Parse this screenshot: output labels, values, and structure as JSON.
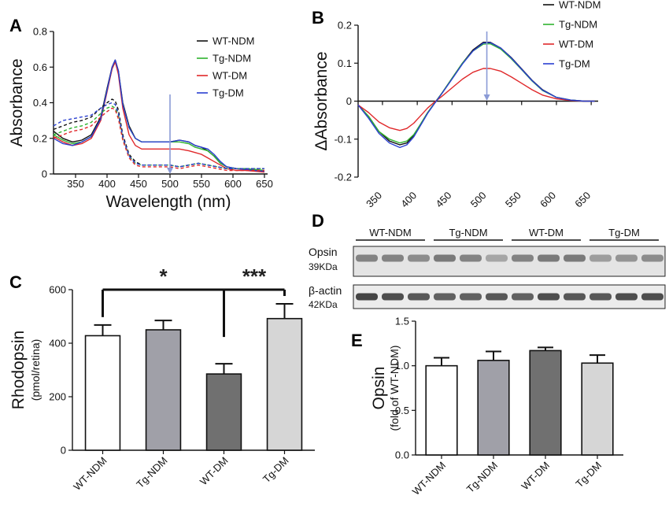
{
  "panels": {
    "A": "A",
    "B": "B",
    "C": "C",
    "D": "D",
    "E": "E"
  },
  "legend_names": [
    "WT-NDM",
    "Tg-NDM",
    "WT-DM",
    "Tg-DM"
  ],
  "colors": {
    "WT-NDM": "#111111",
    "Tg-NDM": "#2fb32f",
    "WT-DM": "#e0282a",
    "Tg-DM": "#2a3fd0",
    "arrow": "#8b9bd6"
  },
  "blot": {
    "groups": [
      "WT-NDM",
      "Tg-NDM",
      "WT-DM",
      "Tg-DM"
    ],
    "rows": [
      {
        "label": "Opsin",
        "kda": "39KDa"
      },
      {
        "label": "β-actin",
        "kda": "42KDa"
      }
    ]
  },
  "chart_data": [
    {
      "panel": "A",
      "type": "line",
      "xlabel": "Wavelength (nm)",
      "ylabel": "Absorbance",
      "xlim": [
        315,
        655
      ],
      "ylim": [
        0,
        0.8
      ],
      "xticks": [
        350,
        400,
        450,
        500,
        550,
        600,
        650
      ],
      "yticks": [
        0.0,
        0.2,
        0.4,
        0.6,
        0.8
      ],
      "arrow_at": 500,
      "series": [
        {
          "name": "WT-NDM",
          "dash": false,
          "x": [
            315,
            330,
            345,
            360,
            375,
            390,
            400,
            408,
            413,
            418,
            425,
            435,
            445,
            455,
            470,
            485,
            500,
            515,
            530,
            540,
            550,
            560,
            570,
            580,
            590,
            605,
            620,
            635,
            650
          ],
          "y": [
            0.24,
            0.2,
            0.18,
            0.19,
            0.22,
            0.32,
            0.48,
            0.6,
            0.64,
            0.58,
            0.4,
            0.27,
            0.2,
            0.18,
            0.18,
            0.18,
            0.18,
            0.19,
            0.18,
            0.16,
            0.15,
            0.13,
            0.1,
            0.06,
            0.04,
            0.03,
            0.025,
            0.02,
            0.015
          ]
        },
        {
          "name": "Tg-NDM",
          "dash": false,
          "x": [
            315,
            330,
            345,
            360,
            375,
            390,
            400,
            408,
            413,
            418,
            425,
            435,
            445,
            455,
            470,
            485,
            500,
            515,
            530,
            540,
            550,
            560,
            570,
            580,
            590,
            605,
            620,
            635,
            650
          ],
          "y": [
            0.22,
            0.19,
            0.17,
            0.18,
            0.21,
            0.31,
            0.47,
            0.59,
            0.63,
            0.57,
            0.39,
            0.26,
            0.2,
            0.18,
            0.18,
            0.18,
            0.18,
            0.18,
            0.17,
            0.15,
            0.14,
            0.13,
            0.1,
            0.06,
            0.04,
            0.03,
            0.03,
            0.025,
            0.02
          ]
        },
        {
          "name": "WT-DM",
          "dash": false,
          "x": [
            315,
            330,
            345,
            360,
            375,
            390,
            400,
            408,
            413,
            418,
            425,
            435,
            445,
            455,
            470,
            485,
            500,
            515,
            530,
            540,
            550,
            560,
            570,
            580,
            590,
            605,
            620,
            635,
            650
          ],
          "y": [
            0.21,
            0.18,
            0.16,
            0.17,
            0.2,
            0.3,
            0.46,
            0.59,
            0.63,
            0.56,
            0.37,
            0.22,
            0.16,
            0.14,
            0.14,
            0.14,
            0.14,
            0.14,
            0.13,
            0.12,
            0.11,
            0.09,
            0.07,
            0.05,
            0.03,
            0.02,
            0.02,
            0.015,
            0.01
          ]
        },
        {
          "name": "Tg-DM",
          "dash": false,
          "x": [
            315,
            330,
            345,
            360,
            375,
            390,
            400,
            408,
            413,
            418,
            425,
            435,
            445,
            455,
            470,
            485,
            500,
            515,
            530,
            540,
            550,
            560,
            570,
            580,
            590,
            605,
            620,
            635,
            650
          ],
          "y": [
            0.2,
            0.17,
            0.16,
            0.18,
            0.21,
            0.31,
            0.47,
            0.6,
            0.64,
            0.58,
            0.39,
            0.26,
            0.2,
            0.18,
            0.18,
            0.18,
            0.18,
            0.19,
            0.18,
            0.16,
            0.15,
            0.14,
            0.11,
            0.07,
            0.04,
            0.03,
            0.025,
            0.02,
            0.015
          ]
        },
        {
          "name": "WT-NDM",
          "dash": true,
          "x": [
            315,
            330,
            345,
            360,
            375,
            390,
            400,
            408,
            413,
            418,
            425,
            435,
            445,
            455,
            470,
            485,
            500,
            515,
            530,
            545,
            560,
            575,
            590,
            605,
            620,
            635,
            650
          ],
          "y": [
            0.25,
            0.27,
            0.29,
            0.3,
            0.32,
            0.37,
            0.4,
            0.42,
            0.41,
            0.36,
            0.22,
            0.11,
            0.07,
            0.05,
            0.05,
            0.05,
            0.05,
            0.04,
            0.05,
            0.06,
            0.05,
            0.04,
            0.03,
            0.03,
            0.03,
            0.03,
            0.03
          ]
        },
        {
          "name": "Tg-NDM",
          "dash": true,
          "x": [
            315,
            330,
            345,
            360,
            375,
            390,
            400,
            408,
            413,
            418,
            425,
            435,
            445,
            455,
            470,
            485,
            500,
            515,
            530,
            545,
            560,
            575,
            590,
            605,
            620,
            635,
            650
          ],
          "y": [
            0.22,
            0.24,
            0.26,
            0.27,
            0.29,
            0.34,
            0.37,
            0.38,
            0.37,
            0.33,
            0.2,
            0.1,
            0.06,
            0.05,
            0.05,
            0.05,
            0.05,
            0.04,
            0.05,
            0.06,
            0.05,
            0.04,
            0.03,
            0.03,
            0.03,
            0.03,
            0.03
          ]
        },
        {
          "name": "WT-DM",
          "dash": true,
          "x": [
            315,
            330,
            345,
            360,
            375,
            390,
            400,
            408,
            413,
            418,
            425,
            435,
            445,
            455,
            470,
            485,
            500,
            515,
            530,
            545,
            560,
            575,
            590,
            605,
            620,
            635,
            650
          ],
          "y": [
            0.2,
            0.22,
            0.24,
            0.25,
            0.27,
            0.32,
            0.35,
            0.37,
            0.36,
            0.31,
            0.19,
            0.09,
            0.05,
            0.04,
            0.04,
            0.04,
            0.04,
            0.03,
            0.04,
            0.05,
            0.04,
            0.03,
            0.02,
            0.02,
            0.02,
            0.02,
            0.02
          ]
        },
        {
          "name": "Tg-DM",
          "dash": true,
          "x": [
            315,
            330,
            345,
            360,
            375,
            390,
            400,
            408,
            413,
            418,
            425,
            435,
            445,
            455,
            470,
            485,
            500,
            515,
            530,
            545,
            560,
            575,
            590,
            605,
            620,
            635,
            650
          ],
          "y": [
            0.27,
            0.3,
            0.31,
            0.32,
            0.33,
            0.37,
            0.39,
            0.4,
            0.39,
            0.34,
            0.21,
            0.1,
            0.06,
            0.05,
            0.05,
            0.05,
            0.05,
            0.04,
            0.05,
            0.06,
            0.05,
            0.04,
            0.03,
            0.03,
            0.03,
            0.03,
            0.03
          ]
        }
      ]
    },
    {
      "panel": "B",
      "type": "line",
      "xlabel": "",
      "ylabel": "ΔAbsorbance",
      "xlim": [
        315,
        660
      ],
      "ylim": [
        -0.2,
        0.2
      ],
      "xticks": [
        350,
        400,
        450,
        500,
        550,
        600,
        650
      ],
      "yticks": [
        -0.2,
        -0.1,
        0.0,
        0.1,
        0.2
      ],
      "arrow_at": 500,
      "series": [
        {
          "name": "WT-NDM",
          "x": [
            315,
            330,
            345,
            360,
            375,
            385,
            395,
            405,
            415,
            425,
            435,
            450,
            465,
            480,
            495,
            505,
            520,
            535,
            550,
            565,
            580,
            600,
            620,
            640,
            655
          ],
          "y": [
            -0.01,
            -0.04,
            -0.08,
            -0.105,
            -0.115,
            -0.11,
            -0.09,
            -0.06,
            -0.03,
            -0.005,
            0.02,
            0.06,
            0.1,
            0.135,
            0.155,
            0.155,
            0.14,
            0.115,
            0.085,
            0.055,
            0.03,
            0.01,
            0.003,
            0.0,
            0.0
          ]
        },
        {
          "name": "Tg-NDM",
          "x": [
            315,
            330,
            345,
            360,
            375,
            385,
            395,
            405,
            415,
            425,
            435,
            450,
            465,
            480,
            495,
            505,
            520,
            535,
            550,
            565,
            580,
            600,
            620,
            640,
            655
          ],
          "y": [
            -0.01,
            -0.04,
            -0.08,
            -0.1,
            -0.11,
            -0.105,
            -0.088,
            -0.06,
            -0.03,
            -0.005,
            0.02,
            0.06,
            0.1,
            0.132,
            0.15,
            0.151,
            0.137,
            0.112,
            0.083,
            0.053,
            0.028,
            0.01,
            0.003,
            0.0,
            0.0
          ]
        },
        {
          "name": "WT-DM",
          "x": [
            315,
            330,
            345,
            360,
            375,
            385,
            395,
            405,
            415,
            425,
            435,
            450,
            465,
            480,
            495,
            505,
            520,
            535,
            550,
            565,
            580,
            600,
            620,
            640,
            655
          ],
          "y": [
            -0.01,
            -0.03,
            -0.055,
            -0.07,
            -0.077,
            -0.072,
            -0.058,
            -0.038,
            -0.018,
            -0.002,
            0.012,
            0.035,
            0.058,
            0.076,
            0.086,
            0.086,
            0.079,
            0.064,
            0.047,
            0.03,
            0.016,
            0.006,
            0.002,
            0.0,
            0.0
          ]
        },
        {
          "name": "Tg-DM",
          "x": [
            315,
            330,
            345,
            360,
            375,
            385,
            395,
            405,
            415,
            425,
            435,
            450,
            465,
            480,
            495,
            505,
            520,
            535,
            550,
            565,
            580,
            600,
            620,
            640,
            655
          ],
          "y": [
            -0.01,
            -0.045,
            -0.085,
            -0.11,
            -0.122,
            -0.115,
            -0.094,
            -0.063,
            -0.032,
            -0.006,
            0.019,
            0.058,
            0.098,
            0.132,
            0.153,
            0.154,
            0.14,
            0.114,
            0.084,
            0.054,
            0.029,
            0.01,
            0.003,
            0.0,
            0.0
          ]
        }
      ]
    },
    {
      "panel": "C",
      "type": "bar",
      "ylabel": "Rhodopsin",
      "ylabel_sub": "(pmol/retina)",
      "categories": [
        "WT-NDM",
        "Tg-NDM",
        "WT-DM",
        "Tg-DM"
      ],
      "values": [
        428,
        450,
        285,
        492
      ],
      "errors": [
        40,
        35,
        38,
        55
      ],
      "colors": [
        "#ffffff",
        "#a0a0a8",
        "#707070",
        "#d6d6d6"
      ],
      "ylim": [
        0,
        600
      ],
      "yticks": [
        0,
        200,
        400,
        600
      ],
      "significance": [
        {
          "from": 0,
          "to": 2,
          "label": "*"
        },
        {
          "from": 2,
          "to": 3,
          "label": "***"
        }
      ]
    },
    {
      "panel": "E",
      "type": "bar",
      "ylabel": "Opsin",
      "ylabel_sub": "(fold of WT-NDM)",
      "categories": [
        "WT-NDM",
        "Tg-NDM",
        "WT-DM",
        "Tg-DM"
      ],
      "values": [
        1.0,
        1.06,
        1.17,
        1.03
      ],
      "errors": [
        0.09,
        0.1,
        0.035,
        0.09
      ],
      "colors": [
        "#ffffff",
        "#a0a0a8",
        "#707070",
        "#d6d6d6"
      ],
      "ylim": [
        0,
        1.5
      ],
      "yticks": [
        "0.0",
        "0.5",
        "1.0",
        "1.5"
      ]
    }
  ]
}
